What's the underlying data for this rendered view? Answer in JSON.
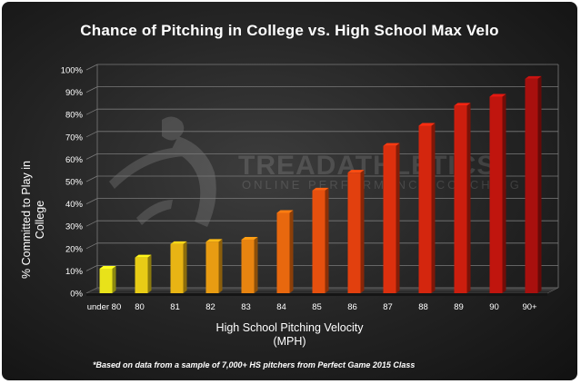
{
  "chart_data": {
    "type": "bar",
    "title": "Chance of Pitching in College vs. High School Max Velo",
    "xlabel": "High School Pitching Velocity",
    "xlabel_unit": "(MPH)",
    "ylabel": "% Committed to Play in College",
    "categories": [
      "under 80",
      "80",
      "81",
      "82",
      "83",
      "84",
      "85",
      "86",
      "87",
      "88",
      "89",
      "90",
      "90+"
    ],
    "values": [
      11,
      16,
      22,
      23,
      24,
      36,
      46,
      54,
      66,
      75,
      84,
      88,
      96
    ],
    "ylim": [
      0,
      100
    ],
    "yticks": [
      "0%",
      "10%",
      "20%",
      "30%",
      "40%",
      "50%",
      "60%",
      "70%",
      "80%",
      "90%",
      "100%"
    ],
    "grid": true,
    "bar_colors": [
      "#e8e21a",
      "#e8cc16",
      "#e8b414",
      "#e89c12",
      "#e88410",
      "#e8680e",
      "#e6500e",
      "#e2400e",
      "#dc300e",
      "#d4260e",
      "#cc1e0e",
      "#c0150e",
      "#a8100e"
    ],
    "background": "#2a2a2a",
    "footnote": "*Based on data from a sample of 7,000+ HS pitchers from Perfect Game 2015 Class"
  }
}
